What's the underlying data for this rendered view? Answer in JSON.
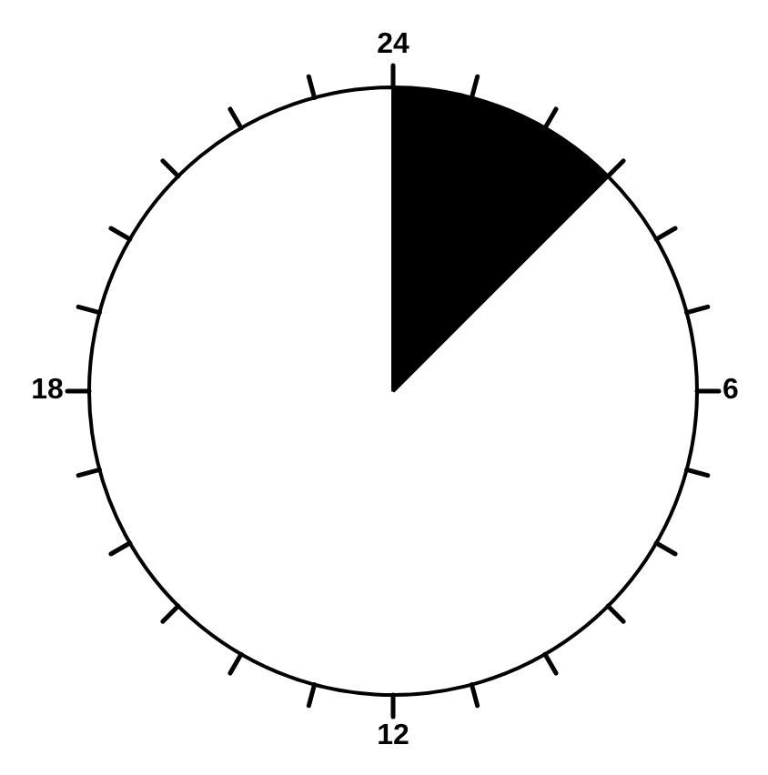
{
  "chart_data": {
    "type": "pie",
    "categories": [
      null,
      null
    ],
    "values": [
      12.5,
      87.5
    ],
    "colors": [
      "#000000",
      "#ffffff"
    ],
    "annotations": [
      "24",
      "6",
      "12",
      "18"
    ]
  }
}
